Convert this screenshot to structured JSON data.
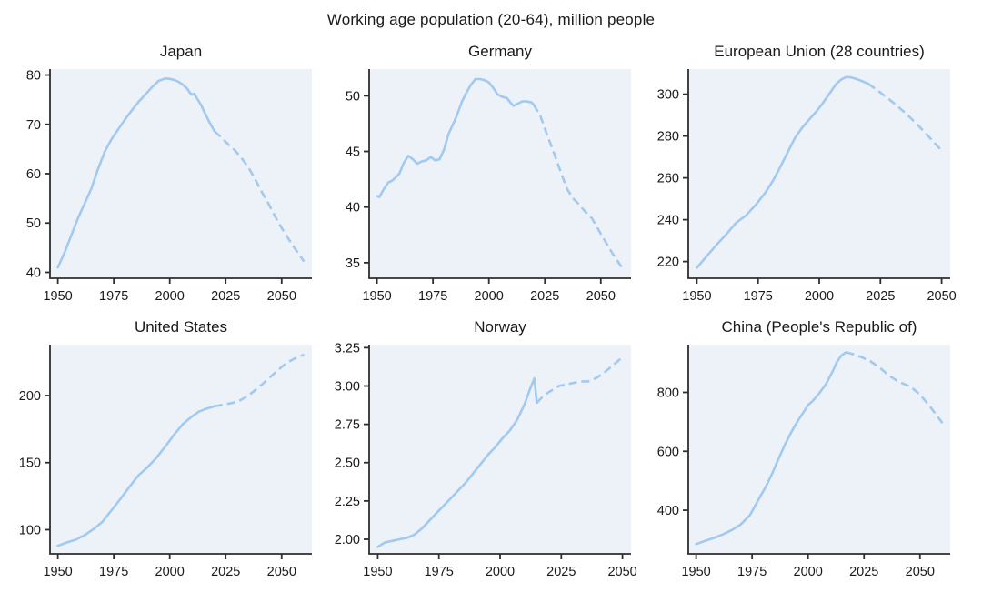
{
  "figure": {
    "title": "Working age population (20-64), million people"
  },
  "colors": {
    "line": "#a2c9ef",
    "plot_bg": "#edf2f8",
    "axis": "#2e2e2e",
    "text": "#1a1a1a"
  },
  "chart_data": [
    {
      "type": "line",
      "title": "Japan",
      "xlabel": "",
      "ylabel": "",
      "grid": false,
      "legend": "none",
      "xlim": [
        1946.5,
        2063.5
      ],
      "ylim": [
        38.8,
        81.2
      ],
      "xticks": [
        1950,
        1975,
        2000,
        2025,
        2050
      ],
      "ytick_values": [
        40,
        50,
        60,
        70,
        80
      ],
      "ytick_labels": [
        "40",
        "50",
        "60",
        "70",
        "80"
      ],
      "series": [
        {
          "name": "historical",
          "style": "solid",
          "x": [
            1950,
            1953,
            1956,
            1959,
            1962,
            1965,
            1968,
            1971,
            1974,
            1977,
            1980,
            1983,
            1986,
            1989,
            1992,
            1995,
            1998,
            2000,
            2002,
            2004,
            2006,
            2008,
            2009,
            2010,
            2011,
            2012,
            2014,
            2016,
            2018,
            2020
          ],
          "y": [
            41.0,
            44.0,
            47.5,
            51.0,
            54.0,
            57.0,
            61.0,
            64.5,
            67.0,
            69.0,
            71.0,
            72.8,
            74.5,
            76.0,
            77.5,
            78.8,
            79.3,
            79.2,
            79.0,
            78.6,
            78.0,
            77.1,
            76.4,
            76.0,
            76.2,
            75.4,
            73.9,
            72.0,
            70.2,
            68.6
          ]
        },
        {
          "name": "projection",
          "style": "dashed",
          "x": [
            2020,
            2023,
            2026,
            2029,
            2032,
            2035,
            2038,
            2041,
            2044,
            2047,
            2050,
            2053,
            2056,
            2060
          ],
          "y": [
            68.6,
            67.4,
            66.0,
            64.8,
            63.2,
            61.4,
            59.0,
            56.4,
            54.0,
            51.4,
            49.0,
            46.8,
            44.8,
            42.2
          ]
        }
      ]
    },
    {
      "type": "line",
      "title": "Germany",
      "xlabel": "",
      "ylabel": "",
      "grid": false,
      "legend": "none",
      "xlim": [
        1946.5,
        2063.5
      ],
      "ylim": [
        33.6,
        52.4
      ],
      "xticks": [
        1950,
        1975,
        2000,
        2025,
        2050
      ],
      "ytick_values": [
        35,
        40,
        45,
        50
      ],
      "ytick_labels": [
        "35",
        "40",
        "45",
        "50"
      ],
      "series": [
        {
          "name": "historical",
          "style": "solid",
          "x": [
            1950,
            1951,
            1953,
            1955,
            1957,
            1960,
            1962,
            1964,
            1966,
            1968,
            1970,
            1972,
            1974,
            1976,
            1978,
            1980,
            1982,
            1985,
            1988,
            1990,
            1992,
            1994,
            1996,
            1998,
            2000,
            2002,
            2004,
            2006,
            2008,
            2010,
            2011,
            2013,
            2015,
            2017,
            2019,
            2020
          ],
          "y": [
            41.0,
            40.9,
            41.6,
            42.2,
            42.4,
            43.0,
            44.0,
            44.6,
            44.3,
            43.9,
            44.1,
            44.2,
            44.5,
            44.2,
            44.3,
            45.2,
            46.6,
            47.9,
            49.5,
            50.3,
            51.0,
            51.5,
            51.5,
            51.4,
            51.2,
            50.7,
            50.1,
            49.9,
            49.8,
            49.3,
            49.1,
            49.3,
            49.5,
            49.5,
            49.4,
            49.2
          ]
        },
        {
          "name": "projection",
          "style": "dashed",
          "x": [
            2020,
            2023,
            2026,
            2029,
            2032,
            2035,
            2038,
            2040,
            2043,
            2046,
            2050,
            2055,
            2060
          ],
          "y": [
            49.2,
            48.2,
            46.5,
            44.9,
            43.2,
            41.6,
            40.7,
            40.3,
            39.6,
            39.0,
            37.6,
            35.9,
            34.4
          ]
        }
      ]
    },
    {
      "type": "line",
      "title": "European Union (28 countries)",
      "xlabel": "",
      "ylabel": "",
      "grid": false,
      "legend": "none",
      "xlim": [
        1946.5,
        2053.5
      ],
      "ylim": [
        212,
        312
      ],
      "xticks": [
        1950,
        1975,
        2000,
        2025,
        2050
      ],
      "ytick_values": [
        220,
        240,
        260,
        280,
        300
      ],
      "ytick_labels": [
        "220",
        "240",
        "260",
        "280",
        "300"
      ],
      "series": [
        {
          "name": "historical",
          "style": "solid",
          "x": [
            1950,
            1954,
            1958,
            1962,
            1966,
            1970,
            1974,
            1978,
            1981,
            1984,
            1987,
            1990,
            1993,
            1996,
            1999,
            2001,
            2004,
            2007,
            2009,
            2011,
            2013,
            2015,
            2017,
            2020
          ],
          "y": [
            217,
            222.5,
            228,
            233,
            238.5,
            242,
            247,
            253,
            258.5,
            265,
            272,
            279,
            284,
            288,
            292,
            295,
            300,
            305,
            307,
            308.2,
            308,
            307.3,
            306.5,
            305
          ]
        },
        {
          "name": "projection",
          "style": "dashed",
          "x": [
            2020,
            2025,
            2030,
            2035,
            2040,
            2045,
            2050
          ],
          "y": [
            305,
            300.8,
            296.2,
            291.2,
            285.6,
            279.4,
            273
          ]
        }
      ]
    },
    {
      "type": "line",
      "title": "United States",
      "xlabel": "",
      "ylabel": "",
      "grid": false,
      "legend": "none",
      "xlim": [
        1946.5,
        2063.5
      ],
      "ylim": [
        82,
        238
      ],
      "xticks": [
        1950,
        1975,
        2000,
        2025,
        2050
      ],
      "ytick_values": [
        100,
        150,
        200
      ],
      "ytick_labels": [
        "100",
        "150",
        "200"
      ],
      "series": [
        {
          "name": "historical",
          "style": "solid",
          "x": [
            1950,
            1954,
            1958,
            1962,
            1966,
            1970,
            1974,
            1978,
            1982,
            1986,
            1990,
            1994,
            1998,
            2002,
            2006,
            2010,
            2013,
            2016,
            2020
          ],
          "y": [
            88,
            90.5,
            92.5,
            96,
            100.5,
            106,
            114.5,
            123,
            132,
            140.5,
            146.5,
            153.5,
            162,
            171,
            179,
            184.5,
            188,
            190,
            192
          ]
        },
        {
          "name": "projection",
          "style": "dashed",
          "x": [
            2020,
            2024,
            2028,
            2031,
            2034,
            2037,
            2040,
            2044,
            2048,
            2052,
            2056,
            2060
          ],
          "y": [
            192,
            193.3,
            194.5,
            196,
            198.8,
            202.5,
            206.5,
            212.5,
            218.5,
            224,
            227.8,
            230.5
          ]
        }
      ]
    },
    {
      "type": "line",
      "title": "Norway",
      "xlabel": "",
      "ylabel": "",
      "grid": false,
      "legend": "none",
      "xlim": [
        1946.5,
        2053.5
      ],
      "ylim": [
        1.905,
        3.27
      ],
      "xticks": [
        1950,
        1975,
        2000,
        2025,
        2050
      ],
      "ytick_values": [
        2.0,
        2.25,
        2.5,
        2.75,
        3.0,
        3.25
      ],
      "ytick_labels": [
        "2.00",
        "2.25",
        "2.50",
        "2.75",
        "3.00",
        "3.25"
      ],
      "series": [
        {
          "name": "historical",
          "style": "solid",
          "x": [
            1950,
            1953,
            1956,
            1959,
            1962,
            1965,
            1968,
            1971,
            1974,
            1977,
            1980,
            1983,
            1986,
            1989,
            1992,
            1995,
            1998,
            2001,
            2004,
            2007,
            2010,
            2012,
            2014,
            2015
          ],
          "y": [
            1.95,
            1.98,
            1.99,
            2.0,
            2.01,
            2.03,
            2.07,
            2.12,
            2.17,
            2.22,
            2.27,
            2.32,
            2.37,
            2.43,
            2.49,
            2.55,
            2.6,
            2.66,
            2.71,
            2.78,
            2.88,
            2.97,
            3.05,
            2.89
          ]
        },
        {
          "name": "projection",
          "style": "dashed",
          "x": [
            2015,
            2018,
            2021,
            2024,
            2027,
            2030,
            2033,
            2036,
            2039,
            2042,
            2045,
            2048,
            2050
          ],
          "y": [
            2.89,
            2.94,
            2.97,
            3.0,
            3.01,
            3.02,
            3.03,
            3.03,
            3.05,
            3.08,
            3.12,
            3.16,
            3.19
          ]
        }
      ]
    },
    {
      "type": "line",
      "title": "China (People's Republic of)",
      "xlabel": "",
      "ylabel": "",
      "grid": false,
      "legend": "none",
      "xlim": [
        1946.5,
        2063.5
      ],
      "ylim": [
        252,
        962
      ],
      "xticks": [
        1950,
        1975,
        2000,
        2025,
        2050
      ],
      "ytick_values": [
        400,
        600,
        800
      ],
      "ytick_labels": [
        "400",
        "600",
        "800"
      ],
      "series": [
        {
          "name": "historical",
          "style": "solid",
          "x": [
            1950,
            1954,
            1958,
            1962,
            1966,
            1970,
            1974,
            1978,
            1981,
            1984,
            1987,
            1990,
            1993,
            1996,
            1998,
            2000,
            2002,
            2005,
            2008,
            2011,
            2013,
            2015,
            2017
          ],
          "y": [
            285,
            296,
            306,
            318,
            333,
            352,
            383,
            438,
            478,
            525,
            578,
            628,
            672,
            710,
            733,
            757,
            770,
            797,
            828,
            872,
            905,
            926,
            936
          ]
        },
        {
          "name": "projection",
          "style": "dashed",
          "x": [
            2017,
            2020,
            2024,
            2028,
            2032,
            2036,
            2040,
            2043,
            2046,
            2050,
            2054,
            2058,
            2060
          ],
          "y": [
            936,
            930,
            919,
            905,
            884,
            858,
            838,
            828,
            818,
            792,
            757,
            716,
            696
          ]
        }
      ]
    }
  ]
}
